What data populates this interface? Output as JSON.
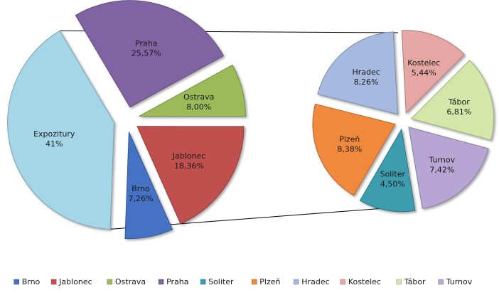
{
  "chart_data": [
    {
      "type": "pie",
      "title": "",
      "exploded": true,
      "slices": [
        {
          "label": "Brno",
          "value": 7.26,
          "display": "7,26%",
          "color": "#4472C4"
        },
        {
          "label": "Expozitury",
          "value": 41,
          "display": "41%",
          "color": "#A5D6E8"
        },
        {
          "label": "Praha",
          "value": 25.57,
          "display": "25,57%",
          "color": "#8064A2"
        },
        {
          "label": "Ostrava",
          "value": 8.0,
          "display": "8,00%",
          "color": "#9BBB59"
        },
        {
          "label": "Jablonec",
          "value": 18.36,
          "display": "18,36%",
          "color": "#C0504D"
        }
      ]
    },
    {
      "type": "pie",
      "title": "",
      "breakdown_of": "Expozitury",
      "exploded": true,
      "slices": [
        {
          "label": "Kostelec",
          "value": 5.44,
          "display": "5,44%",
          "color": "#E6A6A3"
        },
        {
          "label": "Tábor",
          "value": 6.81,
          "display": "6,81%",
          "color": "#D4E6A8"
        },
        {
          "label": "Turnov",
          "value": 7.42,
          "display": "7,42%",
          "color": "#B7A6D4"
        },
        {
          "label": "Soliter",
          "value": 4.5,
          "display": "4,50%",
          "color": "#3D9DAF"
        },
        {
          "label": "Plzeň",
          "value": 8.38,
          "display": "8,38%",
          "color": "#F0893B"
        },
        {
          "label": "Hradec",
          "value": 8.26,
          "display": "8,26%",
          "color": "#A6B9E0"
        }
      ]
    }
  ],
  "legend": {
    "position": "bottom",
    "items": [
      {
        "label": "Brno",
        "color": "#4472C4"
      },
      {
        "label": "Jablonec",
        "color": "#C0504D"
      },
      {
        "label": "Ostrava",
        "color": "#9BBB59"
      },
      {
        "label": "Praha",
        "color": "#8064A2"
      },
      {
        "label": "Soliter",
        "color": "#3D9DAF"
      },
      {
        "label": "Plzeň",
        "color": "#F0893B"
      },
      {
        "label": "Hradec",
        "color": "#A6B9E0"
      },
      {
        "label": "Kostelec",
        "color": "#E6A6A3"
      },
      {
        "label": "Tábor",
        "color": "#D4E6A8"
      },
      {
        "label": "Turnov",
        "color": "#B7A6D4"
      }
    ]
  }
}
